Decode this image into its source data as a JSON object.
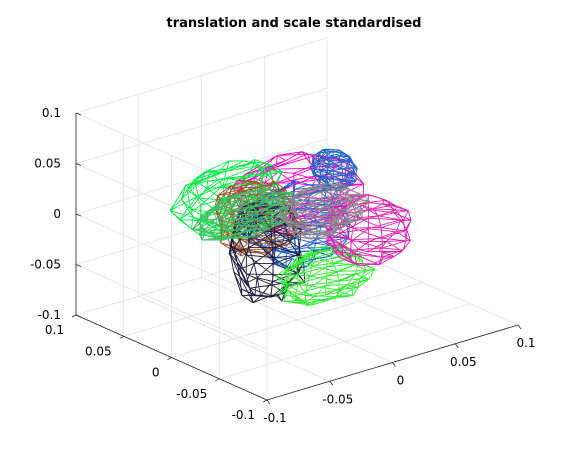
{
  "chart_data": {
    "type": "3d-wireframe-mesh",
    "title": "translation and scale standardised",
    "xlabel": "",
    "ylabel": "",
    "zlabel": "",
    "axes": {
      "x": {
        "range": [
          -0.1,
          0.1
        ],
        "ticks": [
          -0.1,
          -0.05,
          0,
          0.05,
          0.1
        ],
        "tick_labels": [
          "-0.1",
          "-0.05",
          "0",
          "0.05",
          "0.1"
        ]
      },
      "y": {
        "range": [
          -0.1,
          0.1
        ],
        "ticks": [
          -0.1,
          -0.05,
          0,
          0.05,
          0.1
        ],
        "tick_labels": [
          "-0.1",
          "-0.05",
          "0",
          "0.05",
          "0.1"
        ]
      },
      "z": {
        "range": [
          -0.1,
          0.1
        ],
        "ticks": [
          -0.1,
          -0.05,
          0,
          0.05,
          0.1
        ],
        "tick_labels": [
          "-0.1",
          "-0.05",
          "0",
          "0.05",
          "0.1"
        ]
      }
    },
    "grid": true,
    "box": "partial",
    "view": "default 3-D (azimuth -37.5, elevation 30)",
    "meshes": [
      {
        "color": "#ff00cc",
        "center": [
          0.02,
          0.03,
          0.005
        ],
        "radii": [
          0.045,
          0.035,
          0.032
        ]
      },
      {
        "color": "#00ee44",
        "center": [
          -0.025,
          0.035,
          0.015
        ],
        "radii": [
          0.04,
          0.03,
          0.03
        ]
      },
      {
        "color": "#1a5fd6",
        "center": [
          0.0,
          0.0,
          -0.005
        ],
        "radii": [
          0.035,
          0.035,
          0.035
        ]
      },
      {
        "color": "#a0522d",
        "center": [
          -0.04,
          -0.01,
          0.02
        ],
        "radii": [
          0.025,
          0.03,
          0.035
        ]
      },
      {
        "color": "#1c1c3c",
        "center": [
          -0.05,
          -0.035,
          0.0
        ],
        "radii": [
          0.022,
          0.028,
          0.05
        ]
      },
      {
        "color": "#33ee33",
        "center": [
          -0.02,
          -0.055,
          -0.025
        ],
        "radii": [
          0.035,
          0.02,
          0.025
        ]
      },
      {
        "color": "#e020b0",
        "center": [
          0.045,
          -0.015,
          -0.02
        ],
        "radii": [
          0.03,
          0.03,
          0.03
        ]
      },
      {
        "color": "#1e66cc",
        "center": [
          0.06,
          0.04,
          0.01
        ],
        "radii": [
          0.012,
          0.02,
          0.018
        ]
      },
      {
        "color": "#40c060",
        "center": [
          0.0,
          0.055,
          -0.02
        ],
        "radii": [
          0.04,
          0.015,
          0.02
        ]
      },
      {
        "color": "#8a8a8a",
        "center": [
          0.02,
          0.0,
          0.0
        ],
        "radii": [
          0.03,
          0.025,
          0.02
        ]
      }
    ]
  }
}
